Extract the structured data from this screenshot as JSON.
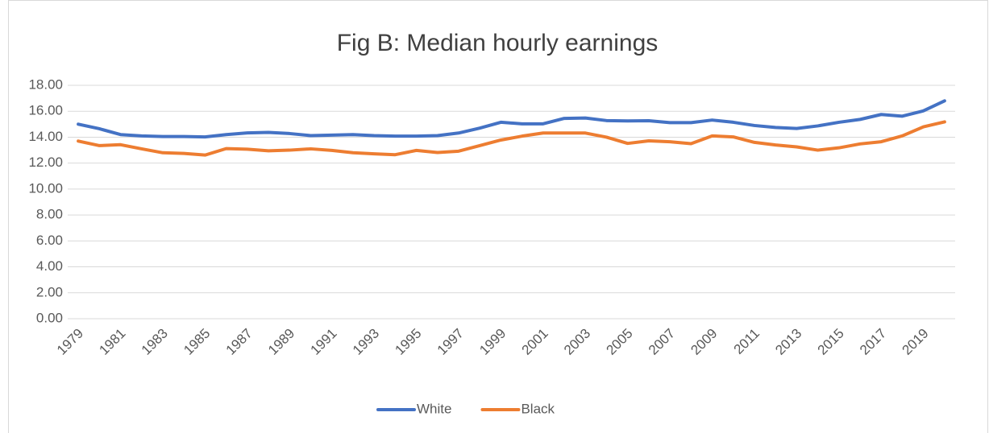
{
  "chart_data": {
    "type": "line",
    "title": "Fig B: Median hourly earnings",
    "categories": [
      "1979",
      null,
      "1981",
      null,
      "1983",
      null,
      "1985",
      null,
      "1987",
      null,
      "1989",
      null,
      "1991",
      null,
      "1993",
      null,
      "1995",
      null,
      "1997",
      null,
      "1999",
      null,
      "2001",
      null,
      "2003",
      null,
      "2005",
      null,
      "2007",
      null,
      "2009",
      null,
      "2011",
      null,
      "2013",
      null,
      "2015",
      null,
      "2017",
      null,
      "2019",
      null
    ],
    "series": [
      {
        "name": "White",
        "color": "#4472c4",
        "values": [
          15.0,
          14.65,
          14.2,
          14.1,
          14.05,
          14.05,
          14.02,
          14.2,
          14.33,
          14.37,
          14.28,
          14.12,
          14.16,
          14.2,
          14.12,
          14.08,
          14.08,
          14.12,
          14.32,
          14.7,
          15.15,
          15.03,
          15.03,
          15.45,
          15.48,
          15.28,
          15.25,
          15.27,
          15.12,
          15.12,
          15.32,
          15.15,
          14.9,
          14.75,
          14.67,
          14.87,
          15.15,
          15.37,
          15.75,
          15.62,
          16.03,
          16.8
        ]
      },
      {
        "name": "Black",
        "color": "#ed7d31",
        "values": [
          13.7,
          13.35,
          13.42,
          13.1,
          12.8,
          12.75,
          12.62,
          13.12,
          13.07,
          12.95,
          13.0,
          13.1,
          12.98,
          12.8,
          12.72,
          12.65,
          12.98,
          12.82,
          12.92,
          13.35,
          13.78,
          14.08,
          14.32,
          14.32,
          14.32,
          14.0,
          13.52,
          13.72,
          13.65,
          13.5,
          14.1,
          14.02,
          13.6,
          13.4,
          13.25,
          13.0,
          13.18,
          13.48,
          13.65,
          14.1,
          14.8,
          15.18
        ]
      }
    ],
    "ylim": [
      0,
      18
    ],
    "yticks": [
      {
        "value": 0,
        "label": "0.00"
      },
      {
        "value": 2,
        "label": "2.00"
      },
      {
        "value": 4,
        "label": "4.00"
      },
      {
        "value": 6,
        "label": "6.00"
      },
      {
        "value": 8,
        "label": "8.00"
      },
      {
        "value": 10,
        "label": "10.00"
      },
      {
        "value": 12,
        "label": "12.00"
      },
      {
        "value": 14,
        "label": "14.00"
      },
      {
        "value": 16,
        "label": "16.00"
      },
      {
        "value": 18,
        "label": "18.00"
      }
    ],
    "grid": true,
    "legend": "bottom"
  }
}
